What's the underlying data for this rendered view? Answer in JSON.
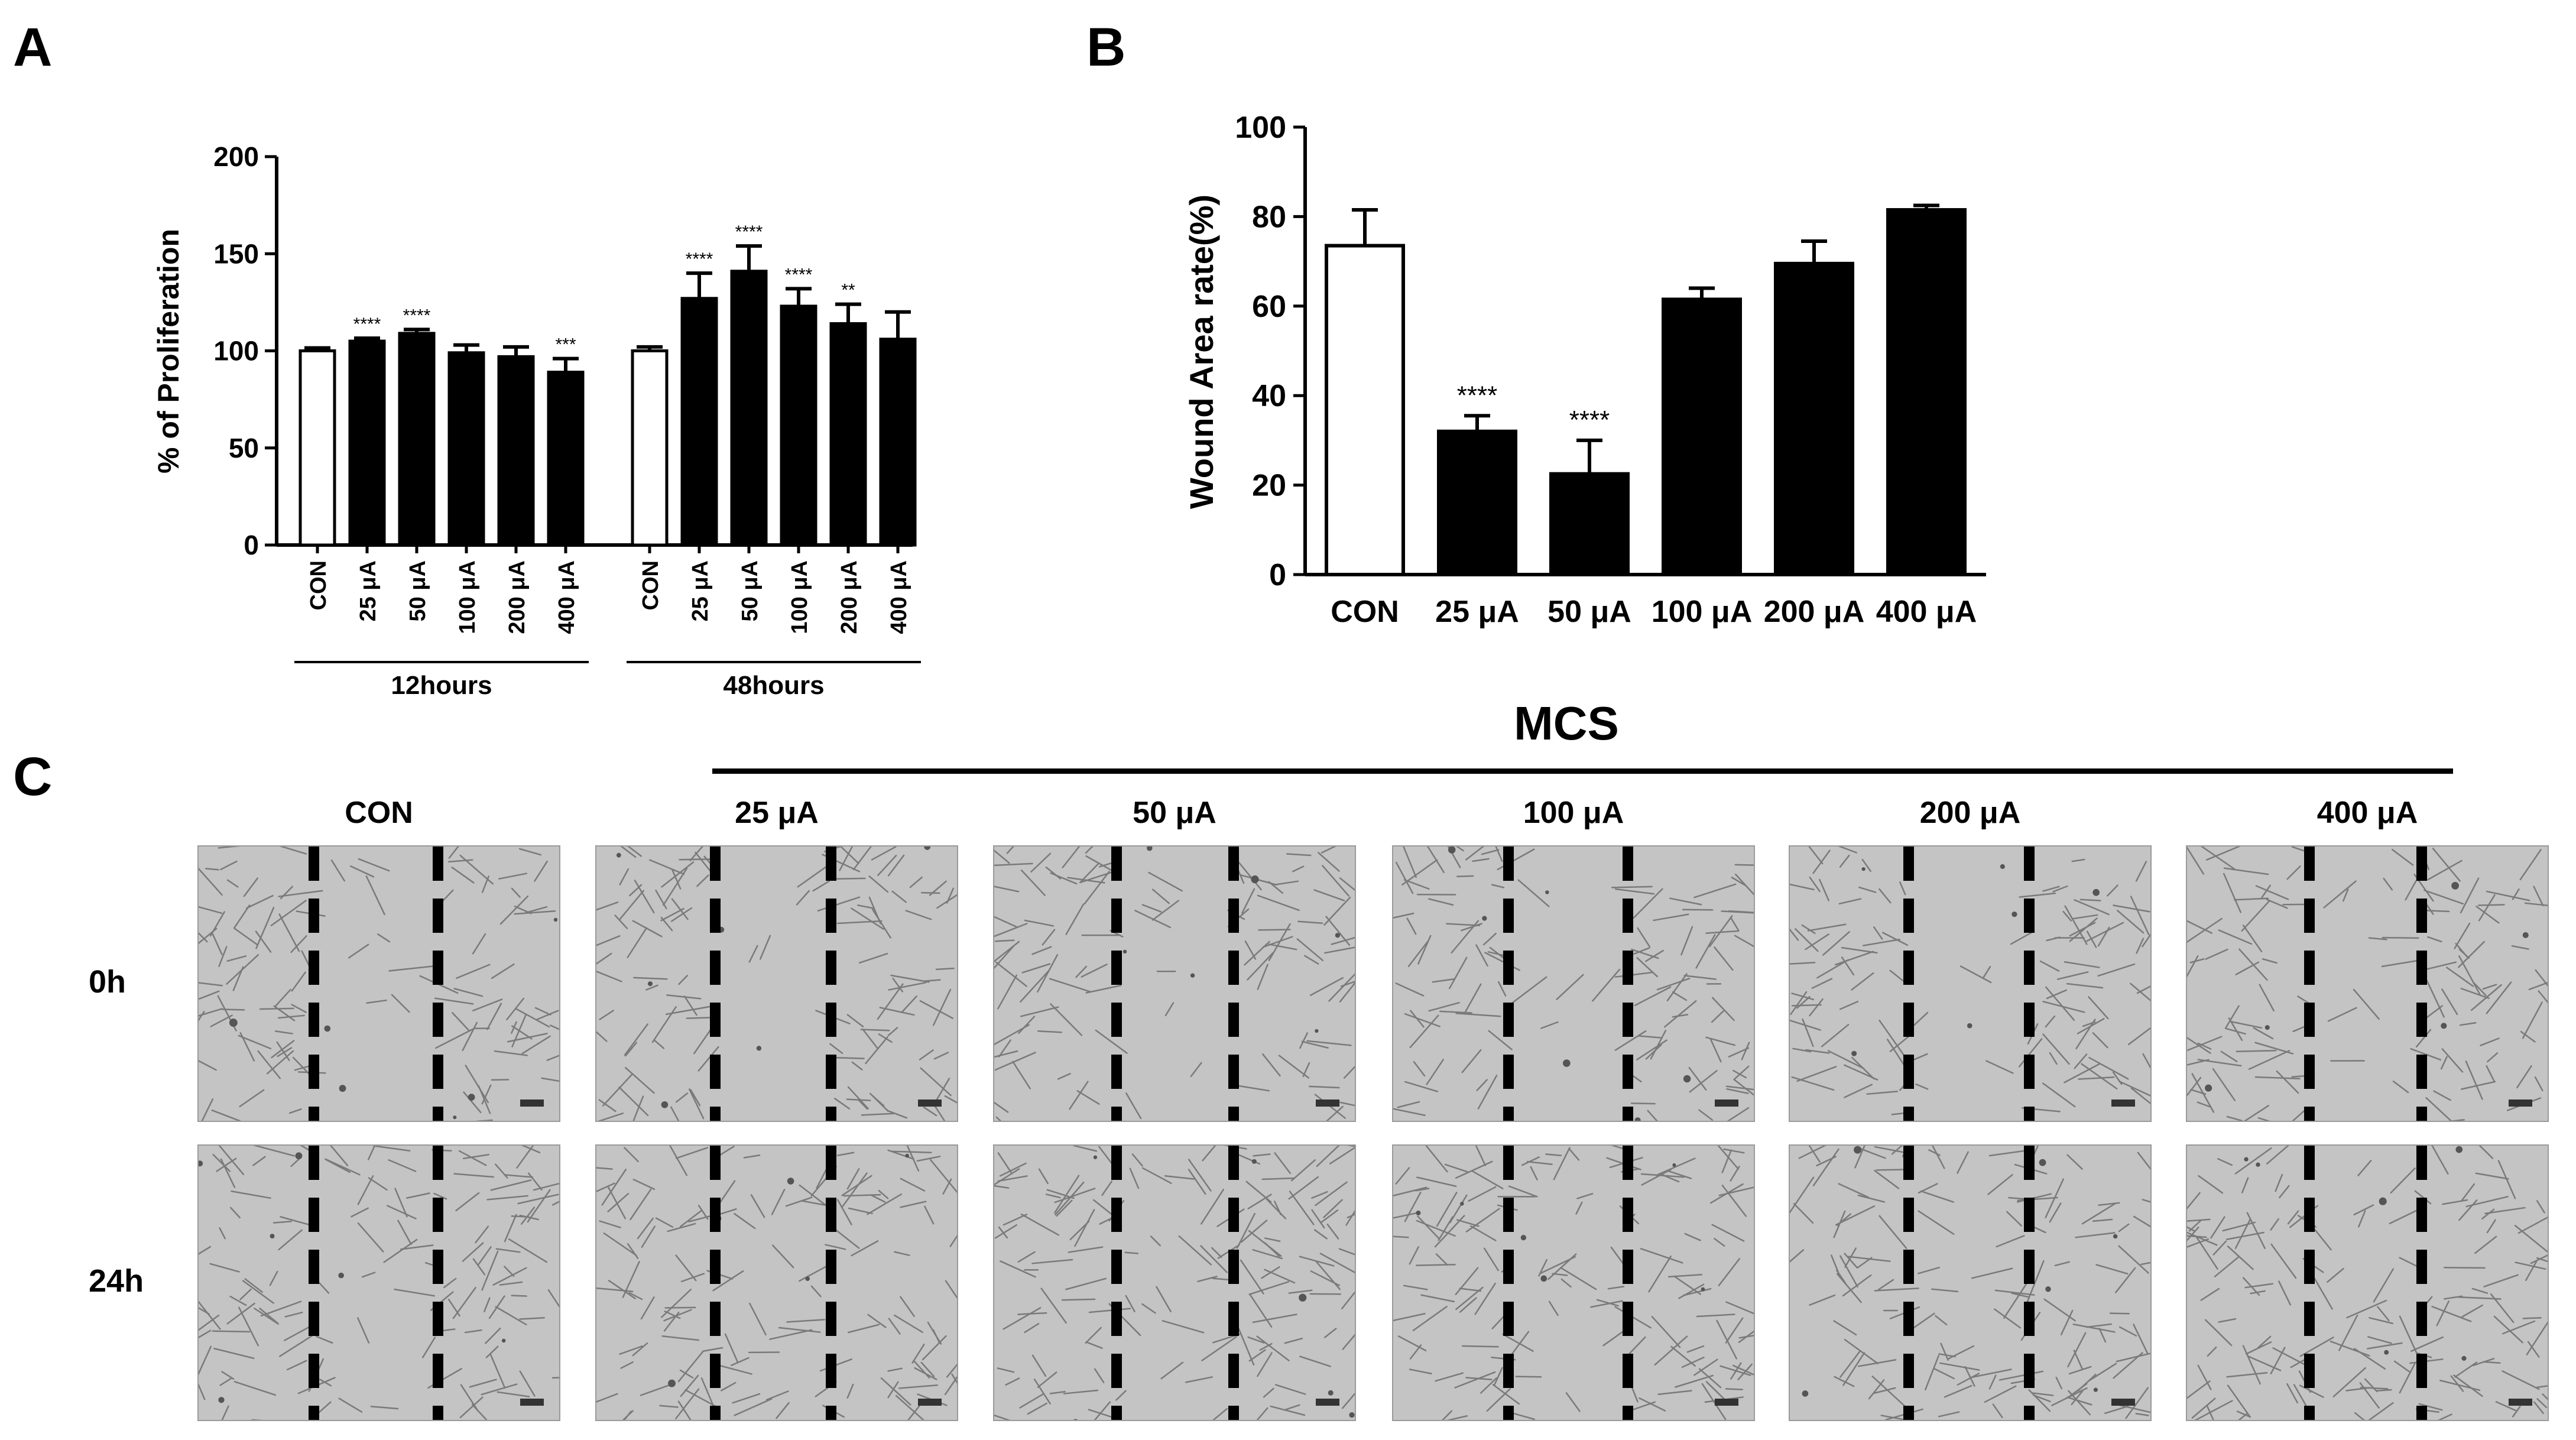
{
  "panels": {
    "a": "A",
    "b": "B",
    "c": "C"
  },
  "colors": {
    "control_fill": "#ffffff",
    "treated_fill": "#000000",
    "axis": "#000000"
  },
  "chart_data": [
    {
      "id": "A",
      "type": "bar",
      "ylabel": "% of Proliferation",
      "ylim": [
        0,
        200
      ],
      "yticks": [
        0,
        50,
        100,
        150,
        200
      ],
      "groups": [
        {
          "name": "12hours",
          "categories": [
            "CON",
            "25 μA",
            "50 μA",
            "100 μA",
            "200 μA",
            "400 μA"
          ],
          "values": [
            100,
            105,
            109,
            99,
            97,
            89
          ],
          "errors": [
            1.5,
            1.5,
            2,
            4,
            5,
            7
          ],
          "significance": [
            "",
            "****",
            "****",
            "",
            "",
            "***"
          ]
        },
        {
          "name": "48hours",
          "categories": [
            "CON",
            "25 μA",
            "50 μA",
            "100 μA",
            "200 μA",
            "400 μA"
          ],
          "values": [
            100,
            127,
            141,
            123,
            114,
            106
          ],
          "errors": [
            2,
            13,
            13,
            9,
            10,
            14
          ],
          "significance": [
            "",
            "****",
            "****",
            "****",
            "**",
            ""
          ]
        }
      ]
    },
    {
      "id": "B",
      "type": "bar",
      "ylabel": "Wound Area rate(%)",
      "ylim": [
        0,
        100
      ],
      "yticks": [
        0,
        20,
        40,
        60,
        80,
        100
      ],
      "categories": [
        "CON",
        "25 μA",
        "50 μA",
        "100 μA",
        "200 μA",
        "400 μA"
      ],
      "values": [
        73.5,
        32,
        22.5,
        61.5,
        69.5,
        81.5
      ],
      "errors": [
        8,
        3.5,
        7.5,
        2.5,
        5,
        1
      ],
      "significance": [
        "",
        "****",
        "****",
        "",
        "",
        ""
      ]
    }
  ],
  "panel_c": {
    "header": "MCS",
    "columns": [
      "CON",
      "25 μA",
      "50 μA",
      "100 μA",
      "200 μA",
      "400 μA"
    ],
    "rows": [
      "0h",
      "24h"
    ]
  }
}
